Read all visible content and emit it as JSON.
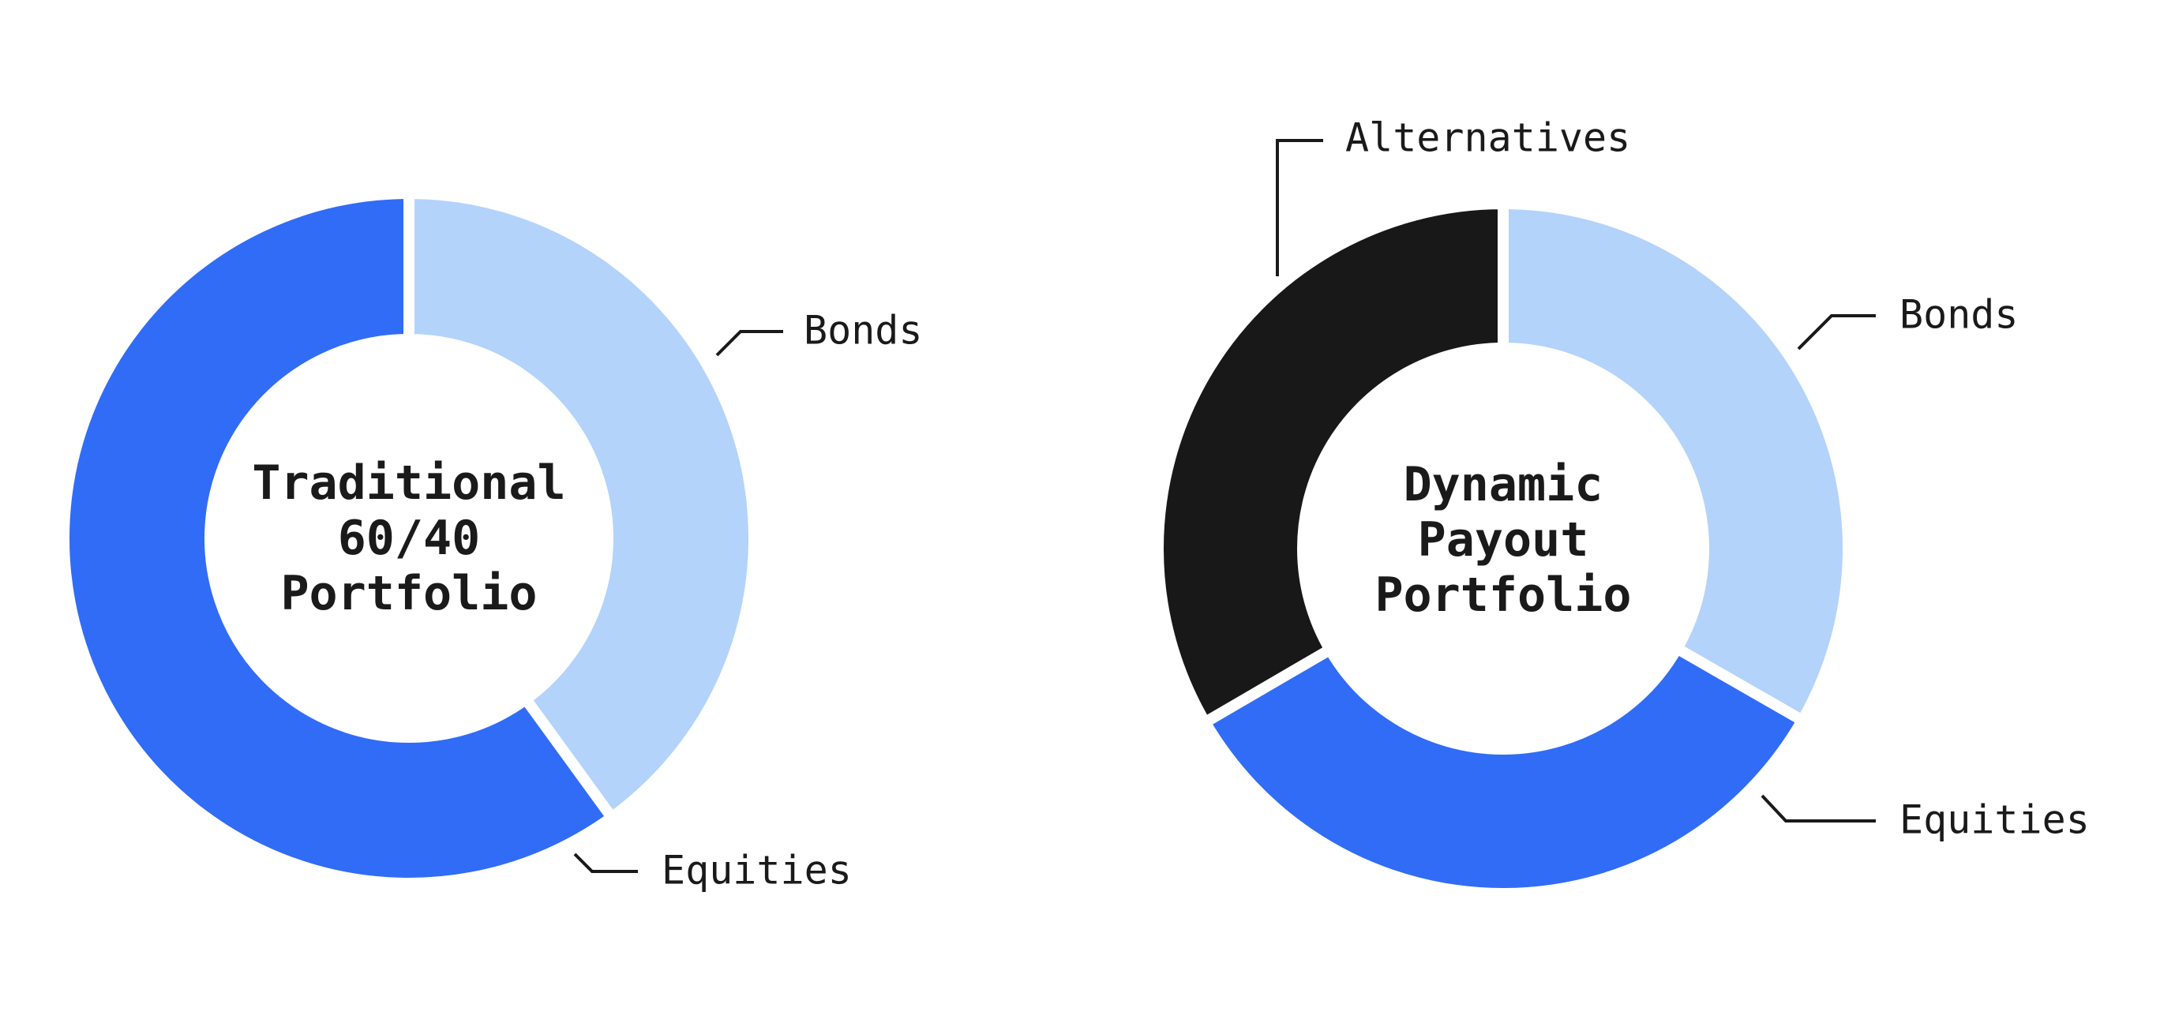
{
  "chart_data": [
    {
      "type": "pie",
      "title": "Traditional 60/40 Portfolio",
      "center_lines": [
        "Traditional",
        "60/40",
        "Portfolio"
      ],
      "categories": [
        "Bonds",
        "Equities"
      ],
      "values": [
        40,
        60
      ],
      "colors": [
        "#b3d3fb",
        "#316cf6"
      ],
      "donut": true,
      "start": "top",
      "direction": "clockwise"
    },
    {
      "type": "pie",
      "title": "Dynamic Payout Portfolio",
      "center_lines": [
        "Dynamic",
        "Payout",
        "Portfolio"
      ],
      "categories": [
        "Bonds",
        "Equities",
        "Alternatives"
      ],
      "values": [
        33.3,
        33.3,
        33.4
      ],
      "colors": [
        "#b3d3fb",
        "#316cf6",
        "#181818"
      ],
      "donut": true,
      "start": "top",
      "direction": "clockwise"
    }
  ]
}
